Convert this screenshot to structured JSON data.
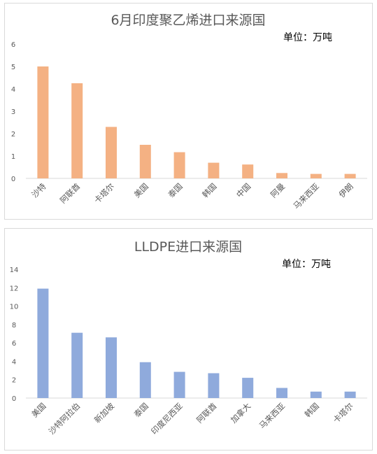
{
  "chart_data": [
    {
      "type": "bar",
      "title": "6月印度聚乙烯进口来源国",
      "unit_label": "单位：万吨",
      "categories": [
        "沙特",
        "阿联酋",
        "卡塔尔",
        "美国",
        "泰国",
        "韩国",
        "中国",
        "阿曼",
        "马来西亚",
        "伊朗"
      ],
      "values": [
        5.0,
        4.25,
        2.3,
        1.5,
        1.17,
        0.7,
        0.62,
        0.24,
        0.2,
        0.2
      ],
      "ylim": [
        0,
        6
      ],
      "yticks": [
        "0",
        "1",
        "2",
        "3",
        "4",
        "5",
        "6"
      ],
      "xlabel": "",
      "ylabel": "",
      "bar_color": "#f4b183",
      "grid": false,
      "legend": "none"
    },
    {
      "type": "bar",
      "title": "LLDPE进口来源国",
      "unit_label": "单位：万吨",
      "categories": [
        "美国",
        "沙特阿拉伯",
        "新加坡",
        "泰国",
        "印度尼西亚",
        "阿联酋",
        "加拿大",
        "马来西亚",
        "韩国",
        "卡塔尔"
      ],
      "values": [
        11.9,
        7.1,
        6.6,
        3.9,
        2.85,
        2.7,
        2.2,
        1.1,
        0.7,
        0.7
      ],
      "ylim": [
        0,
        14
      ],
      "yticks": [
        "0",
        "2",
        "4",
        "6",
        "8",
        "10",
        "12",
        "14"
      ],
      "xlabel": "",
      "ylabel": "",
      "bar_color": "#8faadc",
      "grid": false,
      "legend": "none"
    }
  ]
}
